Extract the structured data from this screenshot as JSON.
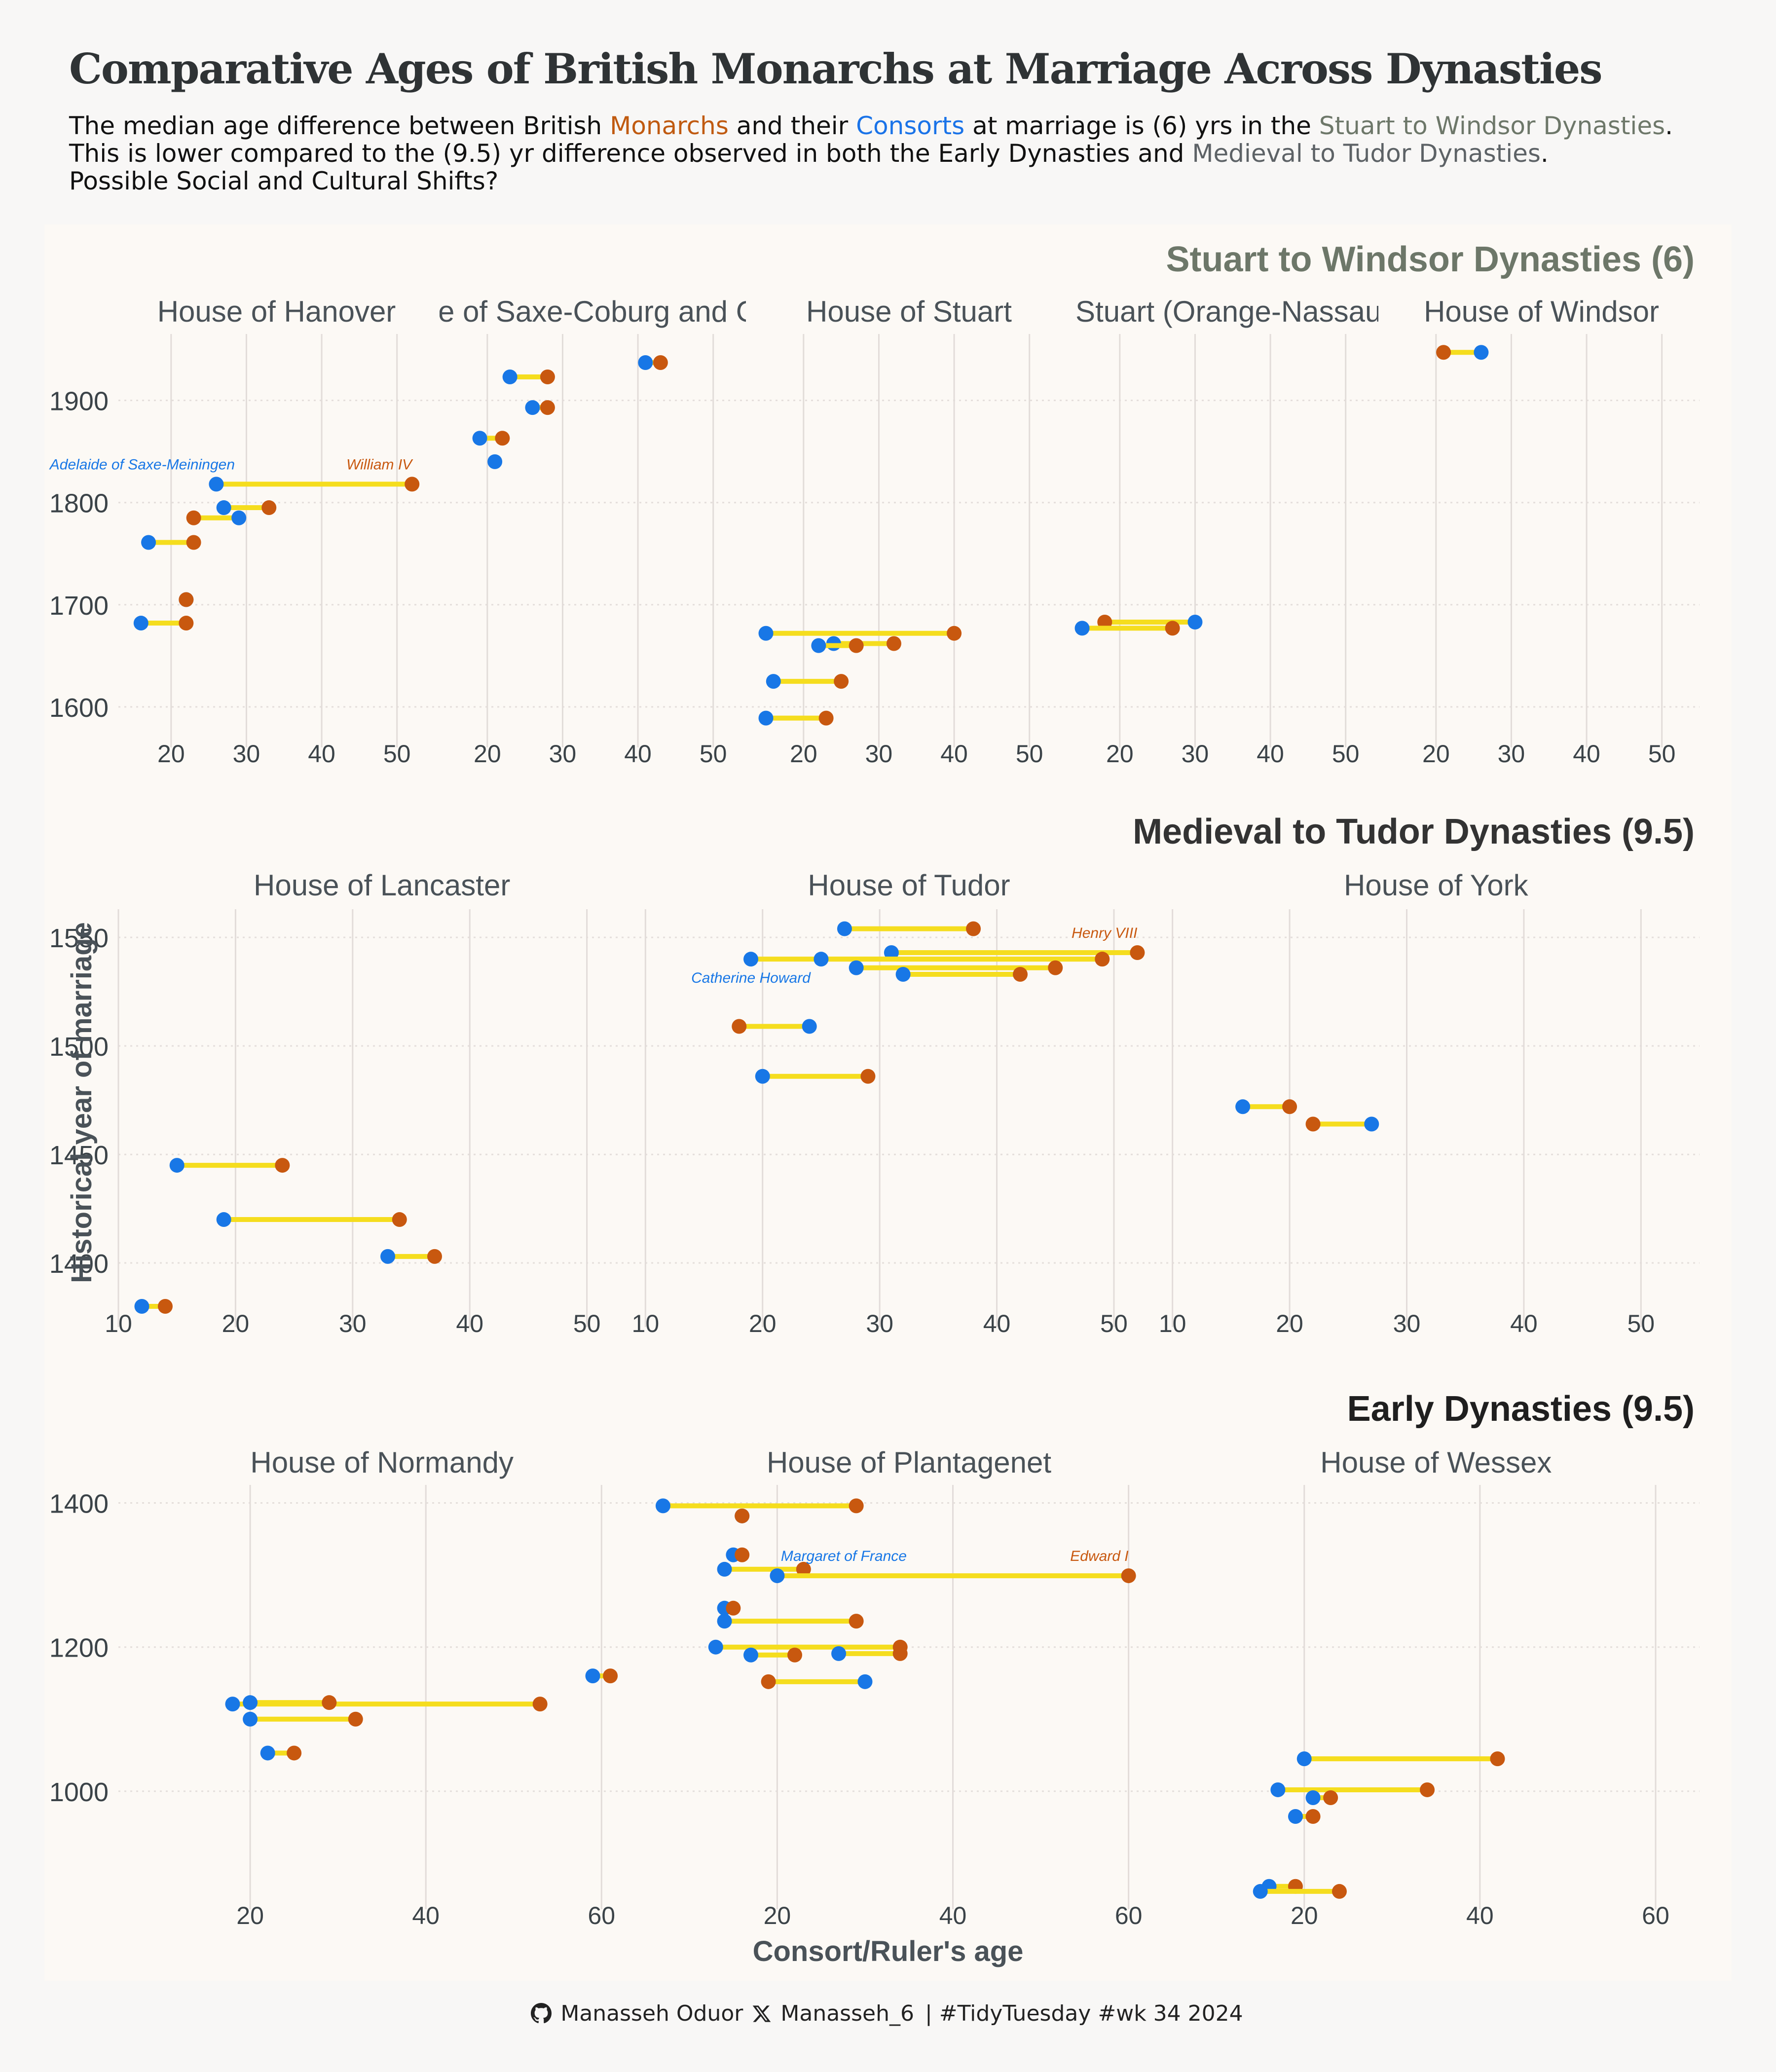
{
  "title": "Comparative Ages of British Monarchs at Marriage Across Dynasties",
  "subtitle": {
    "line1_a": "The median age difference between British ",
    "line1_monarchs": "Monarchs",
    "line1_b": " and their ",
    "line1_consorts": "Consorts",
    "line1_c": " at marriage is (6) yrs in the ",
    "line1_sw": "Stuart to Windsor Dynasties",
    "line1_d": ".",
    "line2_a": "This is lower compared to the (9.5) yr difference observed in both the Early Dynasties and ",
    "line2_mt": "Medieval to Tudor Dynasties",
    "line2_b": ".",
    "line3": "Possible Social and Cultural Shifts?"
  },
  "footer": {
    "github_icon": "github-icon",
    "github_user": "Manasseh Oduor",
    "x_icon": "x-icon",
    "x_user": "Manasseh_6",
    "tag": "| #TidyTuesday #wk 34 2024"
  },
  "colors": {
    "monarch": "#c8580f",
    "consort": "#1877e6",
    "connector": "#f5dd1e",
    "background": "#f8f7f6",
    "panel": "#fcf9f5"
  },
  "chart_data": {
    "type": "scatter",
    "subtype": "dumbbell",
    "ylabel": "Historical year of marriage",
    "xlabel": "Consort/Ruler's age",
    "legend": "none (colors explained in subtitle)",
    "grid": true,
    "groups": [
      {
        "title": "Stuart to Windsor Dynasties (6)",
        "title_color": "#6d7769",
        "xlim": [
          13,
          55
        ],
        "xticks": [
          20,
          30,
          40,
          50
        ],
        "ylim": [
          1570,
          1965
        ],
        "yticks": [
          1600,
          1700,
          1800,
          1900
        ],
        "panels": [
          {
            "name": "House of Hanover",
            "pairs": [
              {
                "year": 1818,
                "monarch": 52,
                "consort": 26,
                "monarch_label": "William IV",
                "consort_label": "Adelaide of Saxe-Meiningen"
              },
              {
                "year": 1795,
                "monarch": 33,
                "consort": 27
              },
              {
                "year": 1785,
                "monarch": 23,
                "consort": 29
              },
              {
                "year": 1761,
                "monarch": 23,
                "consort": 17
              },
              {
                "year": 1705,
                "monarch": 22,
                "consort": 22
              },
              {
                "year": 1682,
                "monarch": 22,
                "consort": 16
              }
            ]
          },
          {
            "name": "House of Saxe-Coburg and Gotha",
            "pairs": [
              {
                "year": 1937,
                "monarch": 43,
                "consort": 41
              },
              {
                "year": 1923,
                "monarch": 28,
                "consort": 23
              },
              {
                "year": 1893,
                "monarch": 28,
                "consort": 26
              },
              {
                "year": 1863,
                "monarch": 22,
                "consort": 19
              },
              {
                "year": 1840,
                "monarch": null,
                "consort": 21
              }
            ]
          },
          {
            "name": "House of Stuart",
            "pairs": [
              {
                "year": 1672,
                "monarch": 40,
                "consort": 15
              },
              {
                "year": 1662,
                "monarch": 32,
                "consort": 24
              },
              {
                "year": 1660,
                "monarch": 27,
                "consort": 22
              },
              {
                "year": 1625,
                "monarch": 25,
                "consort": 16
              },
              {
                "year": 1589,
                "monarch": 23,
                "consort": 15
              }
            ]
          },
          {
            "name": "House of Stuart (Orange-Nassau dynasty)",
            "pairs": [
              {
                "year": 1683,
                "monarch": 18,
                "consort": 30
              },
              {
                "year": 1677,
                "monarch": 27,
                "consort": 15
              }
            ]
          },
          {
            "name": "House of Windsor",
            "pairs": [
              {
                "year": 1947,
                "monarch": 21,
                "consort": 26
              }
            ]
          }
        ]
      },
      {
        "title": "Medieval to Tudor Dynasties (9.5)",
        "title_color": "#333333",
        "xlim": [
          10,
          55
        ],
        "xticks": [
          10,
          20,
          30,
          40,
          50
        ],
        "ylim": [
          1375,
          1563
        ],
        "yticks": [
          1400,
          1450,
          1500,
          1550
        ],
        "panels": [
          {
            "name": "House of Lancaster",
            "pairs": [
              {
                "year": 1445,
                "monarch": 24,
                "consort": 15
              },
              {
                "year": 1420,
                "monarch": 34,
                "consort": 19
              },
              {
                "year": 1403,
                "monarch": 37,
                "consort": 33
              },
              {
                "year": 1380,
                "monarch": 14,
                "consort": 12
              }
            ]
          },
          {
            "name": "House of Tudor",
            "pairs": [
              {
                "year": 1554,
                "monarch": 38,
                "consort": 27
              },
              {
                "year": 1543,
                "monarch": 52,
                "consort": 31,
                "monarch_label": "Henry VIII"
              },
              {
                "year": 1540,
                "monarch": 49,
                "consort": 19,
                "consort_label": "Catherine Howard"
              },
              {
                "year": 1540,
                "monarch": 49,
                "consort": 25
              },
              {
                "year": 1536,
                "monarch": 45,
                "consort": 28
              },
              {
                "year": 1533,
                "monarch": 42,
                "consort": 32
              },
              {
                "year": 1509,
                "monarch": 18,
                "consort": 24
              },
              {
                "year": 1486,
                "monarch": 29,
                "consort": 20
              }
            ]
          },
          {
            "name": "House of York",
            "pairs": [
              {
                "year": 1472,
                "monarch": 20,
                "consort": 16
              },
              {
                "year": 1464,
                "monarch": 22,
                "consort": 27
              }
            ]
          }
        ]
      },
      {
        "title": "Early Dynasties (9.5)",
        "title_color": "#1f1f1f",
        "xlim": [
          5,
          65
        ],
        "xticks": [
          20,
          40,
          60
        ],
        "ylim": [
          850,
          1425
        ],
        "yticks": [
          1000,
          1200,
          1400
        ],
        "panels": [
          {
            "name": "House of Normandy",
            "pairs": [
              {
                "year": 1121,
                "monarch": 53,
                "consort": 18
              },
              {
                "year": 1123,
                "monarch": 29,
                "consort": 20
              },
              {
                "year": 1100,
                "monarch": 32,
                "consort": 20
              },
              {
                "year": 1053,
                "monarch": 25,
                "consort": 22
              }
            ]
          },
          {
            "name": "House of Plantagenet",
            "pairs": [
              {
                "year": 1396,
                "monarch": 29,
                "consort": 7
              },
              {
                "year": 1382,
                "monarch": 16,
                "consort": 16
              },
              {
                "year": 1328,
                "monarch": 16,
                "consort": 15
              },
              {
                "year": 1308,
                "monarch": 23,
                "consort": 14
              },
              {
                "year": 1299,
                "monarch": 60,
                "consort": 20,
                "monarch_label": "Edward I",
                "consort_label": "Margaret of France"
              },
              {
                "year": 1254,
                "monarch": 15,
                "consort": 14
              },
              {
                "year": 1236,
                "monarch": 29,
                "consort": 14
              },
              {
                "year": 1200,
                "monarch": 34,
                "consort": 13
              },
              {
                "year": 1191,
                "monarch": 34,
                "consort": 27
              },
              {
                "year": 1189,
                "monarch": 22,
                "consort": 17
              },
              {
                "year": 1160,
                "monarch": 1,
                "consort": -1
              },
              {
                "year": 1152,
                "monarch": 19,
                "consort": 30
              }
            ]
          },
          {
            "name": "House of Wessex",
            "pairs": [
              {
                "year": 1045,
                "monarch": 42,
                "consort": 20
              },
              {
                "year": 1002,
                "monarch": 34,
                "consort": 17
              },
              {
                "year": 991,
                "monarch": 23,
                "consort": 21
              },
              {
                "year": 965,
                "monarch": 21,
                "consort": 19
              },
              {
                "year": 868,
                "monarch": 19,
                "consort": 16
              },
              {
                "year": 861,
                "monarch": 24,
                "consort": 15
              }
            ]
          }
        ]
      }
    ]
  }
}
